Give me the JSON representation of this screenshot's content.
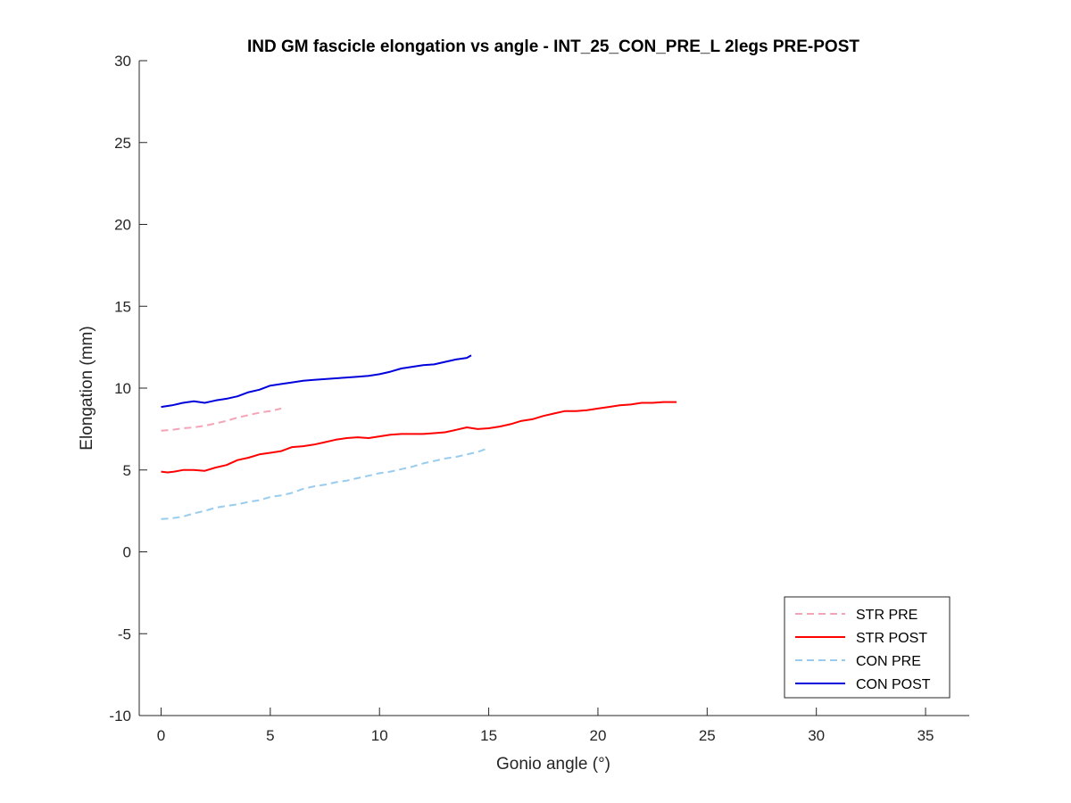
{
  "chart_data": {
    "type": "line",
    "title": "IND GM fascicle elongation vs angle - INT_25_CON_PRE_L 2legs PRE-POST",
    "xlabel": "Gonio angle (°)",
    "ylabel": "Elongation (mm)",
    "xlim": [
      -1,
      37
    ],
    "ylim": [
      -10,
      30
    ],
    "xticks": [
      0,
      5,
      10,
      15,
      20,
      25,
      30,
      35
    ],
    "yticks": [
      -10,
      -5,
      0,
      5,
      10,
      15,
      20,
      25,
      30
    ],
    "grid": false,
    "legend_position": "bottom-right",
    "series": [
      {
        "name": "STR PRE",
        "color": "#f5a3b6",
        "dash": "dashed",
        "x": [
          0,
          0.5,
          1,
          1.5,
          2,
          2.5,
          3,
          3.5,
          4,
          4.5,
          5,
          5.5
        ],
        "y": [
          7.4,
          7.45,
          7.55,
          7.6,
          7.7,
          7.85,
          8.0,
          8.2,
          8.35,
          8.5,
          8.6,
          8.75
        ]
      },
      {
        "name": "STR POST",
        "color": "#ff0000",
        "dash": "solid",
        "x": [
          0,
          0.3,
          0.6,
          1,
          1.5,
          2,
          2.5,
          3,
          3.5,
          4,
          4.5,
          5,
          5.5,
          6,
          6.5,
          7,
          7.5,
          8,
          8.5,
          9,
          9.5,
          10,
          10.5,
          11,
          11.5,
          12,
          12.5,
          13,
          13.5,
          14,
          14.5,
          15,
          15.5,
          16,
          16.5,
          17,
          17.5,
          18,
          18.5,
          19,
          19.5,
          20,
          20.5,
          21,
          21.5,
          22,
          22.5,
          23,
          23.6
        ],
        "y": [
          4.9,
          4.85,
          4.9,
          5.0,
          5.0,
          4.95,
          5.15,
          5.3,
          5.6,
          5.75,
          5.95,
          6.05,
          6.15,
          6.4,
          6.45,
          6.55,
          6.7,
          6.85,
          6.95,
          7.0,
          6.95,
          7.05,
          7.15,
          7.2,
          7.2,
          7.2,
          7.25,
          7.3,
          7.45,
          7.6,
          7.5,
          7.55,
          7.65,
          7.8,
          8.0,
          8.1,
          8.3,
          8.45,
          8.6,
          8.6,
          8.65,
          8.75,
          8.85,
          8.95,
          9.0,
          9.1,
          9.1,
          9.15,
          9.15
        ]
      },
      {
        "name": "CON PRE",
        "color": "#99ccee",
        "dash": "dashed",
        "x": [
          0,
          0.5,
          1,
          1.5,
          2,
          2.5,
          3,
          3.5,
          4,
          4.5,
          5,
          5.5,
          6,
          6.5,
          7,
          7.5,
          8,
          8.5,
          9,
          9.5,
          10,
          10.5,
          11,
          11.5,
          12,
          12.5,
          13,
          13.5,
          14,
          14.5,
          15
        ],
        "y": [
          2.0,
          2.05,
          2.15,
          2.35,
          2.5,
          2.7,
          2.8,
          2.9,
          3.05,
          3.15,
          3.35,
          3.45,
          3.6,
          3.85,
          4.0,
          4.1,
          4.25,
          4.35,
          4.5,
          4.65,
          4.8,
          4.9,
          5.05,
          5.2,
          5.4,
          5.55,
          5.7,
          5.8,
          5.95,
          6.1,
          6.35
        ]
      },
      {
        "name": "CON POST",
        "color": "#0000dd",
        "dash": "solid",
        "x": [
          0,
          0.5,
          1,
          1.5,
          2,
          2.5,
          3,
          3.5,
          4,
          4.5,
          5,
          5.5,
          6,
          6.5,
          7,
          7.5,
          8,
          8.5,
          9,
          9.5,
          10,
          10.5,
          11,
          11.5,
          12,
          12.5,
          13,
          13.5,
          14,
          14.2
        ],
        "y": [
          8.85,
          8.95,
          9.1,
          9.2,
          9.1,
          9.25,
          9.35,
          9.5,
          9.75,
          9.9,
          10.15,
          10.25,
          10.35,
          10.45,
          10.5,
          10.55,
          10.6,
          10.65,
          10.7,
          10.75,
          10.85,
          11.0,
          11.2,
          11.3,
          11.4,
          11.45,
          11.6,
          11.75,
          11.85,
          12.0
        ]
      }
    ]
  }
}
